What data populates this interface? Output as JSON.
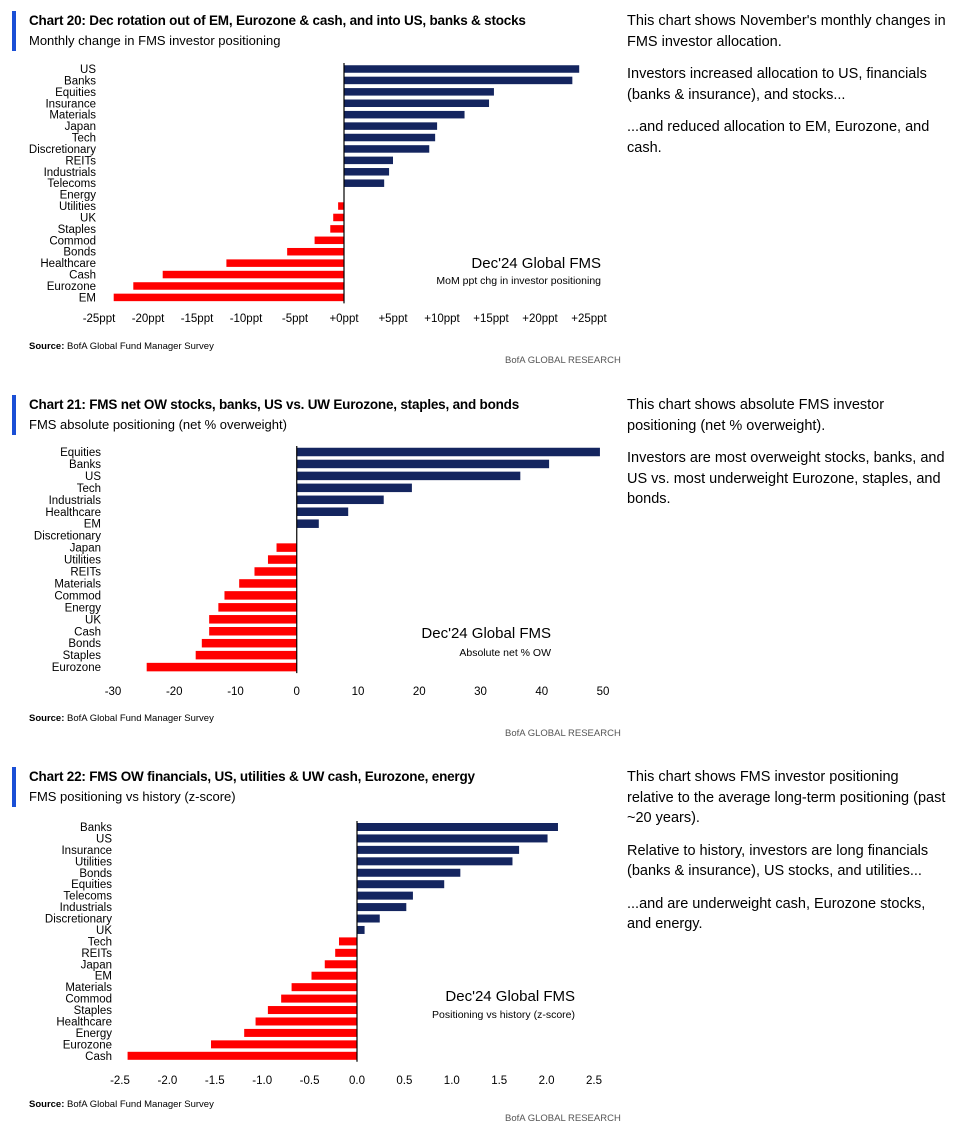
{
  "colors": {
    "positive": "#14255f",
    "negative": "#ff0000",
    "accent": "#1a4fd6",
    "axis": "#000000"
  },
  "panels": [
    {
      "title": "Chart 20: Dec rotation out of EM, Eurozone & cash, and into US, banks & stocks",
      "subtitle": "Monthly change in FMS investor positioning",
      "source_label": "Source:",
      "source_text": "BofA Global Fund Manager Survey",
      "brand": "BofA GLOBAL RESEARCH",
      "commentary": [
        "This chart shows November's monthly changes in FMS investor allocation.",
        "Investors increased allocation to US, financials (banks & insurance), and stocks...",
        "...and reduced allocation to EM, Eurozone, and cash."
      ]
    },
    {
      "title": "Chart 21: FMS net OW stocks, banks, US vs. UW Eurozone, staples, and bonds",
      "subtitle": "FMS absolute positioning (net % overweight)",
      "source_label": "Source:",
      "source_text": "BofA Global Fund Manager Survey",
      "brand": "BofA GLOBAL RESEARCH",
      "commentary": [
        "This chart shows absolute FMS investor positioning (net % overweight).",
        "Investors are most overweight stocks, banks, and US vs. most underweight Eurozone, staples, and bonds."
      ]
    },
    {
      "title": "Chart 22: FMS OW financials, US, utilities & UW cash, Eurozone, energy",
      "subtitle": "FMS positioning vs history (z-score)",
      "source_label": "Source:",
      "source_text": "BofA Global Fund Manager Survey",
      "brand": "BofA GLOBAL RESEARCH",
      "commentary": [
        "This chart shows FMS investor positioning relative to the average long-term positioning (past ~20 years).",
        "Relative to history, investors are long financials (banks & insurance), US stocks, and utilities...",
        "...and are underweight cash, Eurozone stocks, and energy."
      ]
    }
  ],
  "chart_data": [
    {
      "type": "bar",
      "orientation": "horizontal",
      "annotation_title": "Dec'24 Global FMS",
      "annotation_subtitle": "MoM ppt chg in investor positioning",
      "categories": [
        "US",
        "Banks",
        "Equities",
        "Insurance",
        "Materials",
        "Japan",
        "Tech",
        "Discretionary",
        "REITs",
        "Industrials",
        "Telecoms",
        "Energy",
        "Utilities",
        "UK",
        "Staples",
        "Commod",
        "Bonds",
        "Healthcare",
        "Cash",
        "Eurozone",
        "EM"
      ],
      "values": [
        24,
        23.3,
        15.3,
        14.8,
        12.3,
        9.5,
        9.3,
        8.7,
        5,
        4.6,
        4.1,
        0,
        -0.6,
        -1.1,
        -1.4,
        -3,
        -5.8,
        -12,
        -18.5,
        -21.5,
        -23.5
      ],
      "xlim": [
        -25,
        25
      ],
      "ticks": [
        -25,
        -20,
        -15,
        -10,
        -5,
        0,
        5,
        10,
        15,
        20,
        25
      ],
      "tick_labels": [
        "-25ppt",
        "-20ppt",
        "-15ppt",
        "-10ppt",
        "-5ppt",
        "+0ppt",
        "+5ppt",
        "+10ppt",
        "+15ppt",
        "+20ppt",
        "+25ppt"
      ]
    },
    {
      "type": "bar",
      "orientation": "horizontal",
      "annotation_title": "Dec'24 Global FMS",
      "annotation_subtitle": "Absolute net % OW",
      "categories": [
        "Equities",
        "Banks",
        "US",
        "Tech",
        "Industrials",
        "Healthcare",
        "EM",
        "Discretionary",
        "Japan",
        "Utilities",
        "REITs",
        "Materials",
        "Commod",
        "Energy",
        "UK",
        "Cash",
        "Bonds",
        "Staples",
        "Eurozone"
      ],
      "values": [
        49.5,
        41.2,
        36.5,
        18.8,
        14.2,
        8.4,
        3.6,
        0,
        -3.3,
        -4.7,
        -6.9,
        -9.4,
        -11.8,
        -12.8,
        -14.3,
        -14.3,
        -15.5,
        -16.5,
        -24.5
      ],
      "xlim": [
        -30,
        50
      ],
      "ticks": [
        -30,
        -20,
        -10,
        0,
        10,
        20,
        30,
        40,
        50
      ],
      "tick_labels": [
        "-30",
        "-20",
        "-10",
        "0",
        "10",
        "20",
        "30",
        "40",
        "50"
      ]
    },
    {
      "type": "bar",
      "orientation": "horizontal",
      "annotation_title": "Dec'24 Global FMS",
      "annotation_subtitle": "Positioning vs history (z-score)",
      "categories": [
        "Banks",
        "US",
        "Insurance",
        "Utilities",
        "Bonds",
        "Equities",
        "Telecoms",
        "Industrials",
        "Discretionary",
        "UK",
        "Tech",
        "REITs",
        "Japan",
        "EM",
        "Materials",
        "Commod",
        "Staples",
        "Healthcare",
        "Energy",
        "Eurozone",
        "Cash"
      ],
      "values": [
        2.12,
        2.01,
        1.71,
        1.64,
        1.09,
        0.92,
        0.59,
        0.52,
        0.24,
        0.08,
        -0.19,
        -0.23,
        -0.34,
        -0.48,
        -0.69,
        -0.8,
        -0.94,
        -1.07,
        -1.19,
        -1.54,
        -2.42
      ],
      "xlim": [
        -2.5,
        2.5
      ],
      "ticks": [
        -2.5,
        -2,
        -1.5,
        -1,
        -0.5,
        0,
        0.5,
        1,
        1.5,
        2,
        2.5
      ],
      "tick_labels": [
        "-2.5",
        "-2.0",
        "-1.5",
        "-1.0",
        "-0.5",
        "0.0",
        "0.5",
        "1.0",
        "1.5",
        "2.0",
        "2.5"
      ]
    }
  ]
}
